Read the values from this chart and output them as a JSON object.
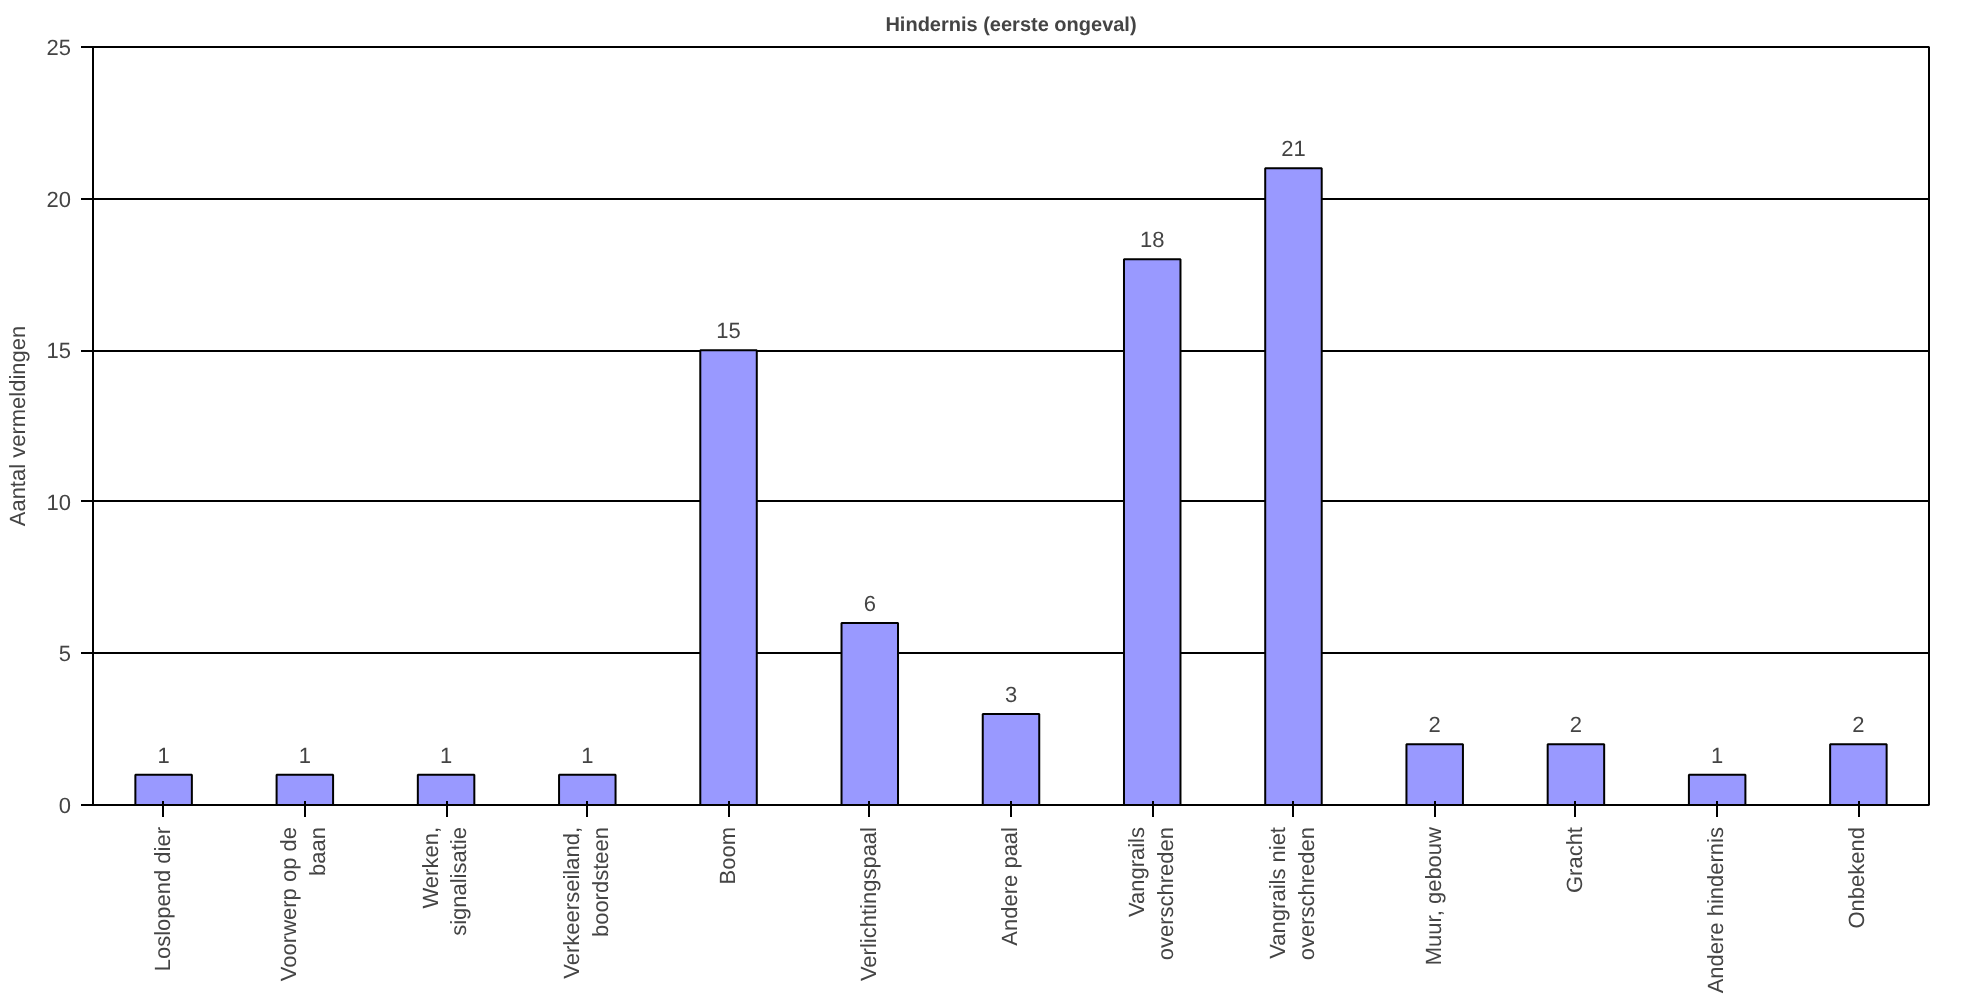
{
  "chart_data": {
    "type": "bar",
    "title": "Hindernis (eerste ongeval)",
    "ylabel": "Aantal vermeldingen",
    "categories": [
      "Loslopend dier",
      "Voorwerp op de\nbaan",
      "Werken,\nsignalisatie",
      "Verkeerseiland,\nboordsteen",
      "Boom",
      "Verlichtingspaal",
      "Andere paal",
      "Vangrails\noverschreden",
      "Vangrails niet\noverschreden",
      "Muur, gebouw",
      "Gracht",
      "Andere hindernis",
      "Onbekend"
    ],
    "values": [
      1,
      1,
      1,
      1,
      15,
      6,
      3,
      18,
      21,
      2,
      2,
      1,
      2
    ],
    "color": "#9999ff",
    "ylim": [
      0,
      25
    ],
    "yticks": [
      0,
      5,
      10,
      15,
      20,
      25
    ],
    "grid": "y",
    "data_labels": true
  }
}
